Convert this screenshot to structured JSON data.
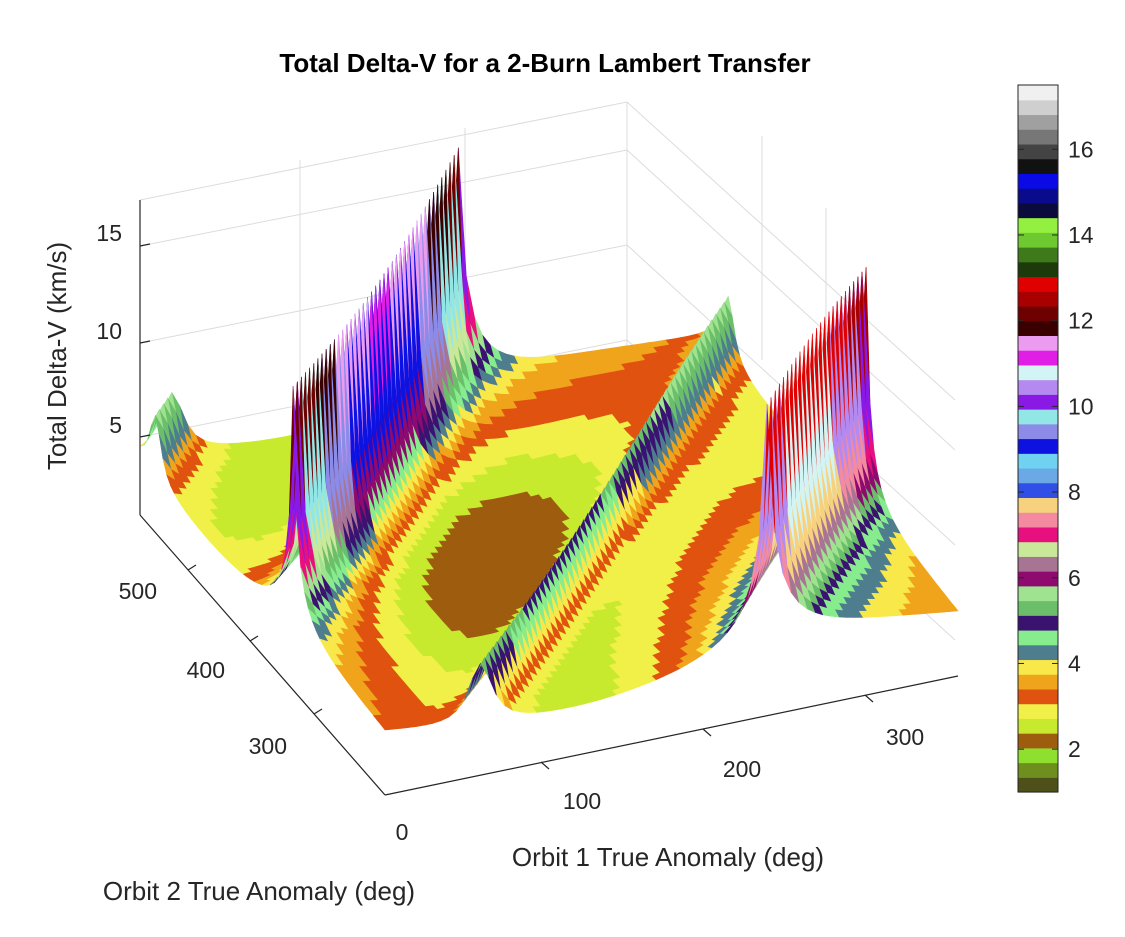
{
  "chart_data": {
    "type": "surface",
    "title": "Total Delta-V for a 2-Burn Lambert Transfer",
    "xlabel": "Orbit 1 True Anomaly (deg)",
    "ylabel": "Orbit 2 True Anomaly (deg)",
    "zlabel": "Total Delta-V (km/s)",
    "x_ticks": [
      "0",
      "100",
      "200",
      "300"
    ],
    "y_ticks": [
      "300",
      "400",
      "500"
    ],
    "z_ticks": [
      "5",
      "10",
      "15"
    ],
    "xlim": [
      0,
      360
    ],
    "ylim": [
      240,
      560
    ],
    "zlim": [
      0,
      17.5
    ],
    "colorbar": {
      "ticks": [
        "2",
        "4",
        "6",
        "8",
        "10",
        "12",
        "14",
        "16"
      ],
      "tick_values": [
        2,
        4,
        6,
        8,
        10,
        12,
        14,
        16
      ],
      "range": [
        1,
        17.5
      ],
      "band_colors": [
        "#4f4f1a",
        "#6e8f1e",
        "#8fe02e",
        "#9e5c0f",
        "#c7ea2e",
        "#f0f048",
        "#e0520f",
        "#f0a41c",
        "#f8e84a",
        "#4e7d8e",
        "#87ec8d",
        "#3a1270",
        "#6bbf6b",
        "#9fe28f",
        "#8e0a6e",
        "#a87494",
        "#c9e89a",
        "#e8107e",
        "#f38aa0",
        "#f7d27e",
        "#2f4fe6",
        "#6aa8e6",
        "#6fd2f0",
        "#0d12e0",
        "#8c8ce8",
        "#93e6e6",
        "#8a19e6",
        "#b48af0",
        "#d3f4f4",
        "#e01ee6",
        "#ec9cf0",
        "#3a0000",
        "#6e0000",
        "#a80000",
        "#e00000",
        "#1c3a0a",
        "#3e7a1a",
        "#6ec830",
        "#93f040",
        "#0a0a3c",
        "#0a0a8c",
        "#0a0ae6",
        "#111111",
        "#444444",
        "#777777",
        "#a0a0a0",
        "#cfcfcf",
        "#f0f0f0"
      ]
    },
    "grid": true,
    "shading": "faceted banded colormap"
  }
}
